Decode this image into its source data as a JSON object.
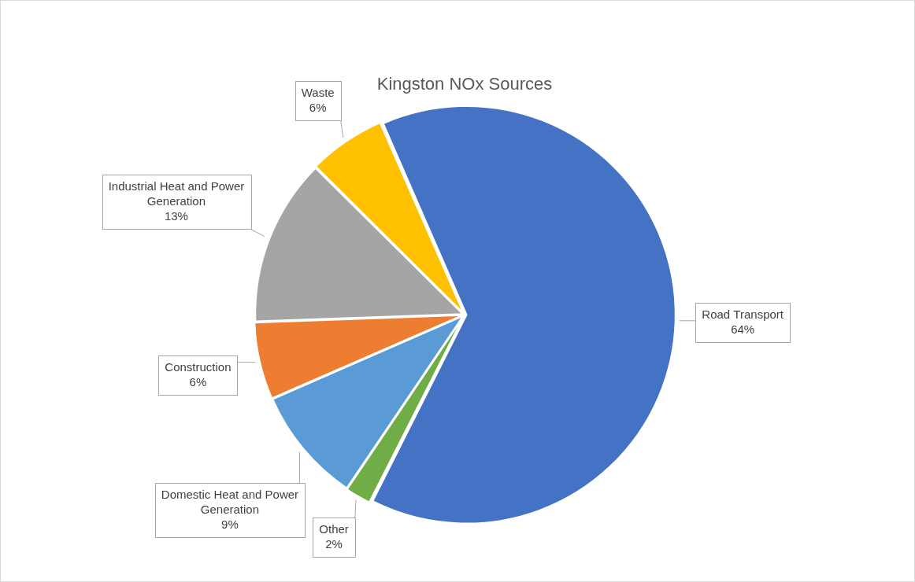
{
  "chart_data": {
    "type": "pie",
    "title": "Kingston NOx Sources",
    "categories": [
      "Road Transport",
      "Other",
      "Domestic Heat and Power Generation",
      "Construction",
      "Industrial Heat and Power Generation",
      "Waste"
    ],
    "values": [
      64,
      2,
      9,
      6,
      13,
      6
    ],
    "value_labels": [
      "64%",
      "2%",
      "9%",
      "6%",
      "13%",
      "6%"
    ],
    "colors": [
      "#4472c4",
      "#70ad47",
      "#5b9bd5",
      "#ed7d31",
      "#a5a5a5",
      "#ffc000"
    ],
    "data_labels": true
  }
}
